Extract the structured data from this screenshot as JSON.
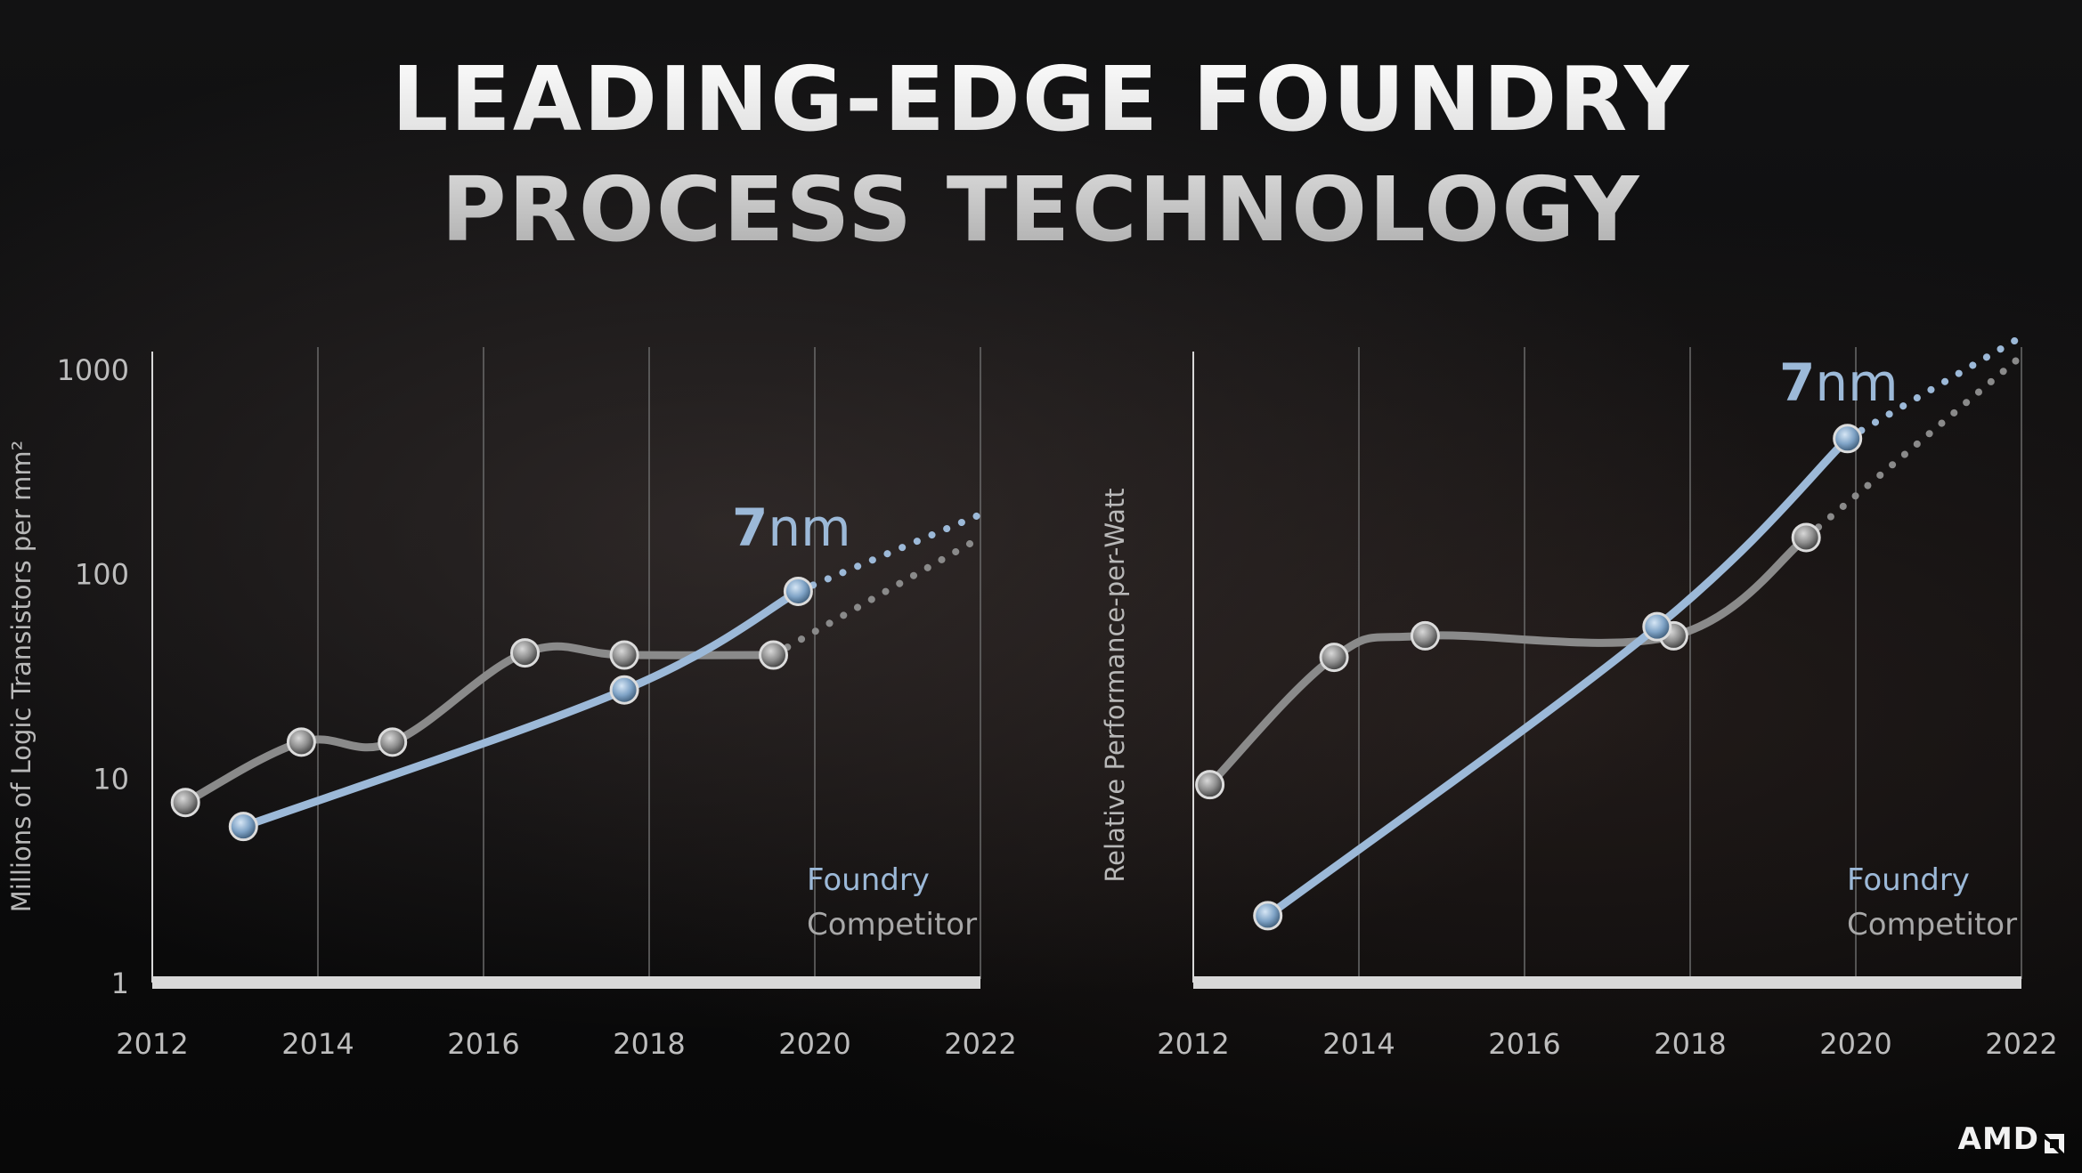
{
  "title": {
    "line1": "LEADING-EDGE FOUNDRY",
    "line2": "PROCESS TECHNOLOGY"
  },
  "logo_text": "AMD",
  "colors": {
    "foundry": "#9cb9d8",
    "competitor": "#8a8a8a",
    "axis": "#d8d8d8",
    "grid": "#6a6a6a",
    "text": "#bdbdbd"
  },
  "chart_data": [
    {
      "type": "line",
      "ylabel": "Millions of Logic Transistors per mm²",
      "xlabel": "",
      "y_scale": "log",
      "ylim": [
        1,
        1000
      ],
      "xlim": [
        2012,
        2022
      ],
      "x_ticks": [
        "2012",
        "2014",
        "2016",
        "2018",
        "2020",
        "2022"
      ],
      "y_ticks": [
        "1",
        "10",
        "100",
        "1000"
      ],
      "grid": "vertical",
      "annotation": {
        "bold": "7",
        "rest": "nm"
      },
      "legend": {
        "foundry": "Foundry",
        "competitor": "Competitor"
      },
      "series": [
        {
          "name": "Foundry",
          "points": [
            [
              2013.1,
              5.8
            ],
            [
              2017.7,
              27
            ],
            [
              2019.8,
              82
            ]
          ],
          "projection": [
            [
              2019.8,
              82
            ],
            [
              2022,
              195
            ]
          ]
        },
        {
          "name": "Competitor",
          "points": [
            [
              2012.4,
              7.6
            ],
            [
              2013.8,
              15
            ],
            [
              2014.9,
              15
            ],
            [
              2016.5,
              41
            ],
            [
              2017.7,
              40
            ],
            [
              2019.5,
              40
            ]
          ],
          "projection": [
            [
              2019.5,
              40
            ],
            [
              2022,
              150
            ]
          ]
        }
      ]
    },
    {
      "type": "line",
      "ylabel": "Relative Performance-per-Watt",
      "xlabel": "",
      "y_scale": "log",
      "ylim": [
        1,
        1000
      ],
      "xlim": [
        2012,
        2022
      ],
      "x_ticks": [
        "2012",
        "2014",
        "2016",
        "2018",
        "2020",
        "2022"
      ],
      "y_ticks": [],
      "grid": "vertical",
      "annotation": {
        "bold": "7",
        "rest": "nm"
      },
      "legend": {
        "foundry": "Foundry",
        "competitor": "Competitor"
      },
      "series": [
        {
          "name": "Foundry",
          "points": [
            [
              2012.9,
              2.1
            ],
            [
              2017.6,
              52
            ],
            [
              2019.9,
              420
            ]
          ],
          "projection": [
            [
              2019.9,
              420
            ],
            [
              2022,
              1300
            ]
          ]
        },
        {
          "name": "Competitor",
          "points": [
            [
              2012.2,
              9
            ],
            [
              2013.7,
              37
            ],
            [
              2014.8,
              47
            ],
            [
              2017.8,
              47
            ],
            [
              2019.4,
              140
            ]
          ],
          "projection": [
            [
              2019.4,
              140
            ],
            [
              2022,
              1050
            ]
          ]
        }
      ]
    }
  ]
}
